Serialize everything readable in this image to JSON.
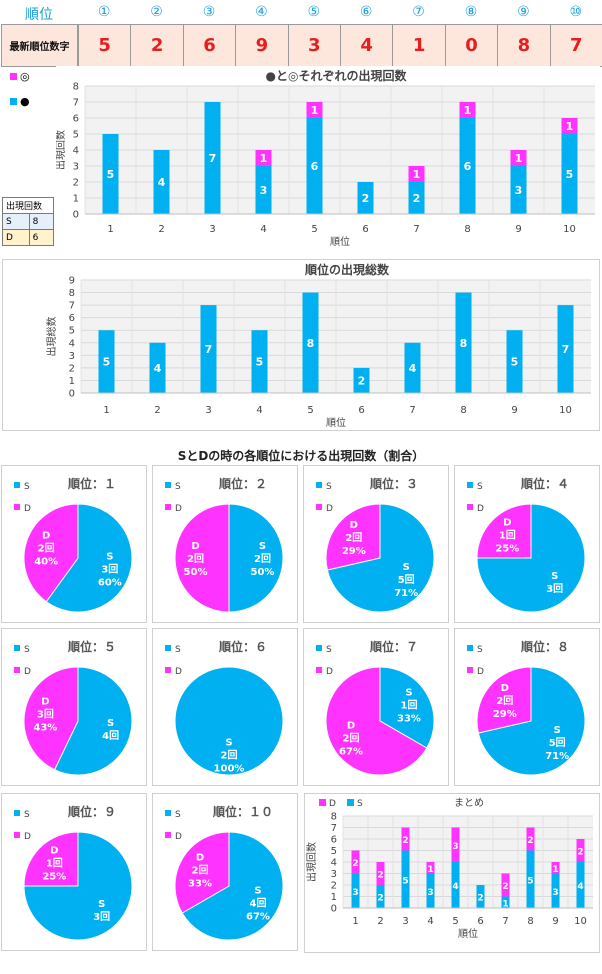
{
  "colors": {
    "s": "#00b0f0",
    "d": "#ff33ff",
    "rank_header": "#1aa0dc",
    "table_bg": "#fde6dc",
    "table_text": "#e81e1e"
  },
  "header": {
    "rank_label": "順位",
    "ranks": [
      "①",
      "②",
      "③",
      "④",
      "⑤",
      "⑥",
      "⑦",
      "⑧",
      "⑨",
      "⑩"
    ],
    "latest_label": "最新順位数字",
    "latest_digits": [
      "5",
      "2",
      "6",
      "9",
      "3",
      "4",
      "1",
      "0",
      "8",
      "7"
    ]
  },
  "legend_top": {
    "item1": "◎",
    "item2": "●"
  },
  "mini_table": {
    "header": "出現回数",
    "rows": [
      {
        "k": "S",
        "v": "8"
      },
      {
        "k": "D",
        "v": "6"
      }
    ]
  },
  "chart_data": [
    {
      "type": "bar",
      "title": "●と◎それぞれの出現回数",
      "xlabel": "順位",
      "ylabel": "出現回数",
      "ylim": [
        0,
        8
      ],
      "categories": [
        "1",
        "2",
        "3",
        "4",
        "5",
        "6",
        "7",
        "8",
        "9",
        "10"
      ],
      "series": [
        {
          "name": "●",
          "values": [
            5,
            4,
            7,
            3,
            6,
            2,
            2,
            6,
            3,
            5
          ]
        },
        {
          "name": "◎",
          "values": [
            0,
            0,
            0,
            1,
            1,
            0,
            1,
            1,
            1,
            1
          ]
        }
      ]
    },
    {
      "type": "bar",
      "title": "順位の出現総数",
      "xlabel": "順位",
      "ylabel": "出現総数",
      "ylim": [
        0,
        9
      ],
      "categories": [
        "1",
        "2",
        "3",
        "4",
        "5",
        "6",
        "7",
        "8",
        "9",
        "10"
      ],
      "series": [
        {
          "values": [
            5,
            4,
            7,
            5,
            8,
            2,
            4,
            8,
            5,
            7
          ]
        }
      ]
    },
    {
      "type": "pie",
      "section_title": "SとDの時の各順位における出現回数（割合）",
      "legend": [
        "S",
        "D"
      ],
      "pies": [
        {
          "title": "順位：１",
          "s": 3,
          "d": 2,
          "s_pct": "60%",
          "d_pct": "40%"
        },
        {
          "title": "順位：２",
          "s": 2,
          "d": 2,
          "s_pct": "50%",
          "d_pct": "50%"
        },
        {
          "title": "順位：３",
          "s": 5,
          "d": 2,
          "s_pct": "71%",
          "d_pct": "29%"
        },
        {
          "title": "順位：４",
          "s": 3,
          "d": 1,
          "s_pct": "",
          "d_pct": "25%"
        },
        {
          "title": "順位：５",
          "s": 4,
          "d": 3,
          "s_pct": "",
          "d_pct": "43%"
        },
        {
          "title": "順位：６",
          "s": 2,
          "d": 0,
          "s_pct": "100%",
          "d_pct": ""
        },
        {
          "title": "順位：７",
          "s": 1,
          "d": 2,
          "s_pct": "33%",
          "d_pct": "67%"
        },
        {
          "title": "順位：８",
          "s": 5,
          "d": 2,
          "s_pct": "71%",
          "d_pct": "29%"
        },
        {
          "title": "順位：９",
          "s": 3,
          "d": 1,
          "s_pct": "",
          "d_pct": "25%"
        },
        {
          "title": "順位：１０",
          "s": 4,
          "d": 2,
          "s_pct": "67%",
          "d_pct": "33%"
        }
      ]
    },
    {
      "type": "bar",
      "title": "まとめ",
      "xlabel": "順位",
      "ylabel": "出現回数",
      "ylim": [
        0,
        8
      ],
      "legend": [
        "D",
        "S"
      ],
      "categories": [
        "1",
        "2",
        "3",
        "4",
        "5",
        "6",
        "7",
        "8",
        "9",
        "10"
      ],
      "series": [
        {
          "name": "S",
          "values": [
            3,
            2,
            5,
            3,
            4,
            2,
            1,
            5,
            3,
            4
          ]
        },
        {
          "name": "D",
          "values": [
            2,
            2,
            2,
            1,
            3,
            0,
            2,
            2,
            1,
            2
          ]
        }
      ]
    }
  ]
}
